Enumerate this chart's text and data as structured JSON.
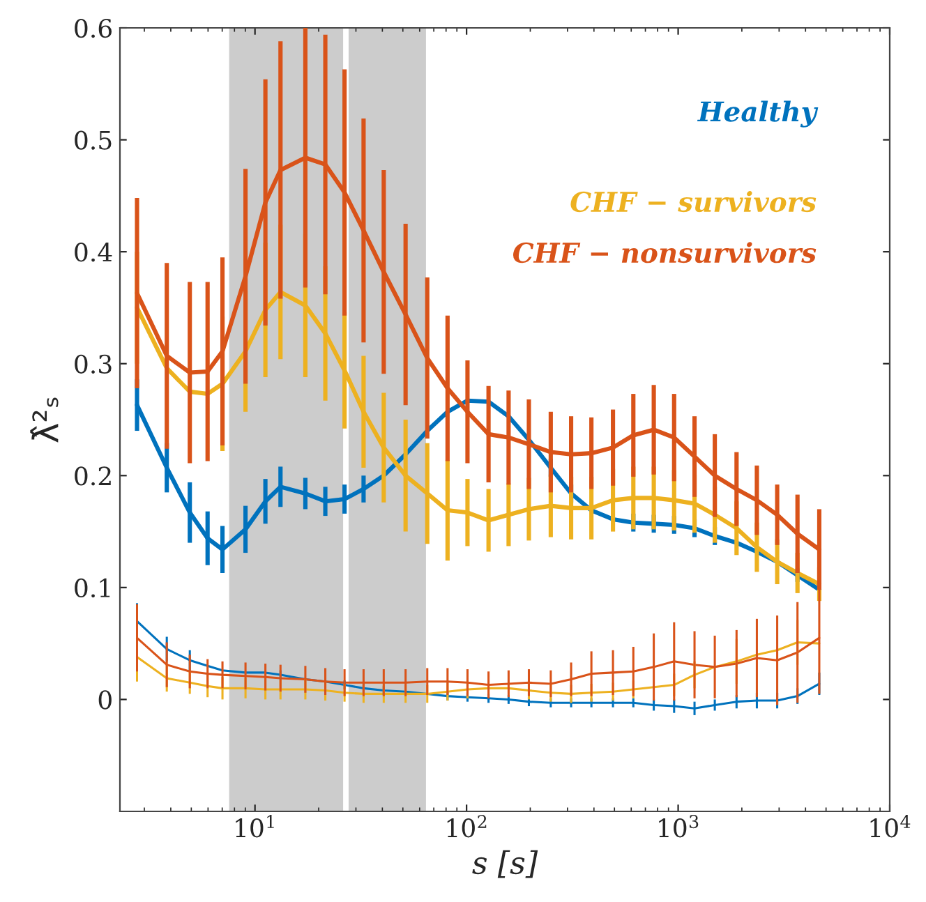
{
  "chart_data": {
    "type": "line",
    "xlabel": "s [s]",
    "ylabel": "λ̂²ₛ",
    "log": "x",
    "xlim": [
      2.3,
      10000
    ],
    "xticks": [
      {
        "value": 10,
        "label": "10$^{1}$"
      },
      {
        "value": 100,
        "label": "10$^{2}$"
      },
      {
        "value": 1000,
        "label": "10$^{3}$"
      },
      {
        "value": 10000,
        "label": "10$^{4}$"
      }
    ],
    "ylim": [
      -0.1,
      0.6
    ],
    "yticks": [
      0,
      0.1,
      0.2,
      0.3,
      0.4,
      0.5,
      0.6
    ],
    "grid": false,
    "bands": [
      {
        "axis": "x",
        "from": 7.55,
        "to": 26.1,
        "color": "#cccccc"
      },
      {
        "axis": "x",
        "from": 27.7,
        "to": 64.3,
        "color": "#cccccc"
      }
    ],
    "x": [
      2.77,
      3.83,
      4.92,
      5.97,
      7.02,
      9.02,
      11.2,
      13.2,
      17.3,
      21.5,
      26.5,
      32.6,
      40.6,
      51.5,
      65.2,
      81.3,
      101,
      127,
      158,
      197,
      250,
      312,
      389,
      492,
      614,
      767,
      957,
      1195,
      1490,
      1888,
      2355,
      2938,
      3664,
      4645
    ],
    "series": [
      {
        "name": "Healthy",
        "color": "#0072bd",
        "values": [
          0.263,
          0.207,
          0.167,
          0.144,
          0.134,
          0.152,
          0.177,
          0.19,
          0.184,
          0.177,
          0.179,
          0.188,
          0.2,
          0.219,
          0.24,
          0.257,
          0.267,
          0.266,
          0.253,
          0.232,
          0.207,
          0.184,
          0.169,
          0.161,
          0.158,
          0.157,
          0.156,
          0.153,
          0.146,
          0.14,
          0.132,
          0.123,
          0.111,
          0.098
        ],
        "errors": [
          0.023,
          0.022,
          0.027,
          0.024,
          0.021,
          0.021,
          0.02,
          0.018,
          0.014,
          0.013,
          0.013,
          0.012,
          null,
          null,
          null,
          null,
          null,
          null,
          null,
          null,
          0.008,
          0.008,
          null,
          null,
          0.008,
          0.008,
          0.008,
          0.008,
          0.008,
          null,
          null,
          null,
          0.006,
          null
        ]
      },
      {
        "name": "CHF − survivors",
        "color": "#edb120",
        "values": [
          0.35,
          0.296,
          0.275,
          0.273,
          0.282,
          0.311,
          0.348,
          0.364,
          0.352,
          0.327,
          0.294,
          0.257,
          0.225,
          0.2,
          0.184,
          0.169,
          0.167,
          0.16,
          0.165,
          0.17,
          0.173,
          0.171,
          0.171,
          0.178,
          0.18,
          0.18,
          0.178,
          0.175,
          0.165,
          0.153,
          0.136,
          0.123,
          0.113,
          0.103
        ],
        "errors": [
          0.05,
          null,
          null,
          null,
          0.06,
          0.054,
          0.06,
          0.06,
          0.064,
          0.06,
          0.052,
          0.05,
          0.049,
          0.05,
          0.045,
          0.045,
          0.03,
          0.028,
          0.028,
          0.028,
          0.028,
          0.028,
          0.028,
          0.028,
          0.028,
          0.028,
          0.027,
          0.026,
          0.025,
          0.024,
          0.022,
          0.02,
          0.018,
          0.015
        ]
      },
      {
        "name": "CHF − nonsurvivors",
        "color": "#d95319",
        "values": [
          0.363,
          0.307,
          0.292,
          0.293,
          0.311,
          0.378,
          0.444,
          0.473,
          0.484,
          0.478,
          0.453,
          0.419,
          0.382,
          0.344,
          0.305,
          0.278,
          0.257,
          0.237,
          0.234,
          0.228,
          0.221,
          0.219,
          0.22,
          0.225,
          0.236,
          0.241,
          0.234,
          0.217,
          0.2,
          0.188,
          0.178,
          0.165,
          0.148,
          0.134
        ],
        "errors": [
          0.085,
          0.083,
          0.081,
          0.08,
          0.084,
          0.096,
          0.11,
          0.115,
          0.116,
          0.116,
          0.11,
          0.1,
          0.091,
          0.081,
          0.072,
          0.065,
          0.046,
          0.043,
          0.042,
          0.04,
          0.036,
          0.034,
          0.032,
          0.034,
          0.037,
          0.04,
          0.039,
          0.036,
          0.037,
          0.033,
          0.031,
          0.027,
          0.035,
          0.036
        ]
      },
      {
        "color": "#0072bd",
        "values": [
          0.07,
          0.045,
          0.035,
          0.03,
          0.026,
          0.024,
          0.024,
          0.022,
          0.018,
          0.016,
          0.013,
          0.01,
          0.008,
          0.007,
          0.005,
          0.003,
          0.002,
          0.001,
          0.0,
          -0.002,
          -0.003,
          -0.003,
          -0.003,
          -0.003,
          -0.003,
          -0.005,
          -0.006,
          -0.008,
          -0.005,
          -0.002,
          -0.001,
          -0.001,
          0.003,
          0.014
        ],
        "errors": [
          0.016,
          0.011,
          0.009,
          null,
          null,
          null,
          null,
          0.004,
          null,
          null,
          0.004,
          0.004,
          0.004,
          null,
          null,
          0.004,
          0.004,
          0.004,
          0.004,
          0.004,
          0.004,
          0.004,
          0.004,
          0.004,
          0.004,
          0.005,
          0.006,
          0.006,
          0.005,
          0.006,
          0.007,
          0.007,
          0.007,
          0.01
        ]
      },
      {
        "color": "#edb120",
        "values": [
          0.038,
          0.019,
          0.015,
          0.012,
          0.01,
          0.01,
          0.009,
          0.009,
          0.009,
          0.008,
          0.006,
          0.005,
          0.005,
          0.005,
          0.005,
          0.007,
          0.009,
          0.01,
          0.01,
          0.008,
          0.006,
          0.005,
          0.006,
          0.007,
          0.009,
          0.011,
          0.013,
          0.022,
          0.029,
          0.034,
          0.04,
          0.044,
          0.051,
          0.05
        ],
        "errors": [
          0.022,
          0.012,
          0.01,
          0.01,
          0.01,
          0.009,
          0.009,
          0.009,
          0.009,
          0.009,
          0.008,
          0.008,
          0.008,
          0.008,
          0.008,
          0.008,
          0.008,
          null,
          null,
          0.008,
          0.008,
          0.008,
          0.008,
          0.008,
          0.008,
          null,
          0.01,
          0.012,
          null,
          0.02,
          null,
          null,
          0.02,
          null
        ]
      },
      {
        "color": "#d95319",
        "values": [
          0.055,
          0.031,
          0.025,
          0.023,
          0.022,
          0.021,
          0.02,
          0.019,
          0.018,
          0.016,
          0.015,
          0.015,
          0.015,
          0.015,
          0.016,
          0.016,
          0.015,
          0.013,
          0.014,
          0.015,
          0.014,
          0.018,
          0.023,
          0.024,
          0.025,
          0.029,
          0.034,
          0.031,
          0.029,
          0.032,
          0.037,
          0.035,
          0.042,
          0.055
        ],
        "errors": [
          0.03,
          0.02,
          0.015,
          0.013,
          0.012,
          0.012,
          0.012,
          0.012,
          0.012,
          0.012,
          0.012,
          0.012,
          0.012,
          0.012,
          0.012,
          0.012,
          0.012,
          0.012,
          0.012,
          0.012,
          0.012,
          0.015,
          0.02,
          0.02,
          0.022,
          0.03,
          0.035,
          0.03,
          0.028,
          0.03,
          0.035,
          0.04,
          0.045,
          0.05
        ]
      }
    ]
  }
}
